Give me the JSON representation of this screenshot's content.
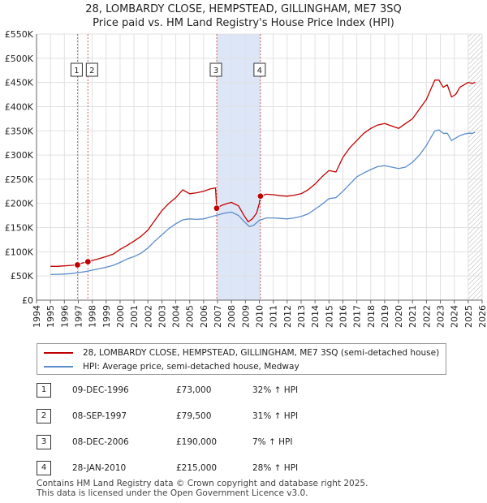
{
  "header": {
    "title_line1": "28, LOMBARDY CLOSE, HEMPSTEAD, GILLINGHAM, ME7 3SQ",
    "title_line2": "Price paid vs. HM Land Registry's House Price Index (HPI)"
  },
  "legend": {
    "property_label": "28, LOMBARDY CLOSE, HEMPSTEAD, GILLINGHAM, ME7 3SQ (semi-detached house)",
    "hpi_label": "HPI: Average price, semi-detached house, Medway"
  },
  "sales": [
    {
      "num": "1",
      "date": "09-DEC-1996",
      "price": "£73,000",
      "hpi": "32% ↑ HPI"
    },
    {
      "num": "2",
      "date": "08-SEP-1997",
      "price": "£79,500",
      "hpi": "31% ↑ HPI"
    },
    {
      "num": "3",
      "date": "08-DEC-2006",
      "price": "£190,000",
      "hpi": "7% ↑ HPI"
    },
    {
      "num": "4",
      "date": "28-JAN-2010",
      "price": "£215,000",
      "hpi": "28% ↑ HPI"
    }
  ],
  "footer": {
    "line1": "Contains HM Land Registry data © Crown copyright and database right 2025.",
    "line2": "This data is licensed under the Open Government Licence v3.0."
  },
  "colors": {
    "property": "#c00000",
    "hpi": "#5b8ccc",
    "shade": "#dde6f7",
    "grid": "#e0e0e0",
    "marker_line": "#d06060"
  },
  "chart_data": {
    "type": "line",
    "title": "28, LOMBARDY CLOSE, HEMPSTEAD, GILLINGHAM, ME7 3SQ — Price paid vs. HM Land Registry's House Price Index (HPI)",
    "xlabel": "",
    "ylabel": "",
    "xlim": [
      1994,
      2026
    ],
    "ylim": [
      0,
      550000
    ],
    "x_ticks": [
      1994,
      1995,
      1996,
      1997,
      1998,
      1999,
      2000,
      2001,
      2002,
      2003,
      2004,
      2005,
      2006,
      2007,
      2008,
      2009,
      2010,
      2011,
      2012,
      2013,
      2014,
      2015,
      2016,
      2017,
      2018,
      2019,
      2020,
      2021,
      2022,
      2023,
      2024,
      2025,
      2026
    ],
    "y_ticks": [
      0,
      50000,
      100000,
      150000,
      200000,
      250000,
      300000,
      350000,
      400000,
      450000,
      500000,
      550000
    ],
    "y_tick_labels": [
      "£0",
      "£50K",
      "£100K",
      "£150K",
      "£200K",
      "£250K",
      "£300K",
      "£350K",
      "£400K",
      "£450K",
      "£500K",
      "£550K"
    ],
    "shaded_range": [
      2006.94,
      2010.08
    ],
    "hatched_from": 2025.0,
    "markers": [
      {
        "label": "1",
        "x": 1996.94,
        "y": 73000
      },
      {
        "label": "2",
        "x": 1997.69,
        "y": 79500
      },
      {
        "label": "3",
        "x": 2006.94,
        "y": 190000
      },
      {
        "label": "4",
        "x": 2010.08,
        "y": 215000
      }
    ],
    "series": [
      {
        "name": "28, LOMBARDY CLOSE, HEMPSTEAD, GILLINGHAM, ME7 3SQ (semi-detached house)",
        "x": [
          1995.0,
          1995.5,
          1996.0,
          1996.5,
          1996.94,
          1997.3,
          1997.69,
          1998.0,
          1998.5,
          1999.0,
          1999.5,
          2000.0,
          2000.5,
          2001.0,
          2001.5,
          2002.0,
          2002.5,
          2003.0,
          2003.5,
          2004.0,
          2004.5,
          2005.0,
          2005.5,
          2006.0,
          2006.5,
          2006.85,
          2006.94,
          2007.3,
          2007.7,
          2008.0,
          2008.5,
          2008.9,
          2009.2,
          2009.5,
          2009.8,
          2010.0,
          2010.08,
          2010.5,
          2011.0,
          2011.5,
          2012.0,
          2012.5,
          2013.0,
          2013.5,
          2014.0,
          2014.5,
          2015.0,
          2015.5,
          2016.0,
          2016.5,
          2017.0,
          2017.5,
          2018.0,
          2018.5,
          2019.0,
          2019.5,
          2020.0,
          2020.5,
          2021.0,
          2021.5,
          2022.0,
          2022.3,
          2022.6,
          2022.9,
          2023.2,
          2023.5,
          2023.8,
          2024.1,
          2024.4,
          2024.7,
          2025.0,
          2025.3,
          2025.5
        ],
        "values": [
          70000,
          70000,
          71000,
          72000,
          73000,
          77000,
          79500,
          82000,
          86000,
          90000,
          95000,
          105000,
          113000,
          122000,
          132000,
          145000,
          165000,
          185000,
          200000,
          212000,
          228000,
          220000,
          222000,
          225000,
          230000,
          232000,
          190000,
          196000,
          200000,
          202000,
          195000,
          175000,
          162000,
          168000,
          180000,
          200000,
          215000,
          219000,
          218000,
          216000,
          215000,
          217000,
          220000,
          228000,
          240000,
          255000,
          268000,
          265000,
          295000,
          315000,
          330000,
          345000,
          355000,
          362000,
          365000,
          360000,
          355000,
          365000,
          375000,
          395000,
          415000,
          435000,
          455000,
          455000,
          440000,
          445000,
          420000,
          425000,
          440000,
          445000,
          450000,
          448000,
          450000
        ]
      },
      {
        "name": "HPI: Average price, semi-detached house, Medway",
        "x": [
          1995.0,
          1995.5,
          1996.0,
          1996.5,
          1997.0,
          1997.5,
          1998.0,
          1998.5,
          1999.0,
          1999.5,
          2000.0,
          2000.5,
          2001.0,
          2001.5,
          2002.0,
          2002.5,
          2003.0,
          2003.5,
          2004.0,
          2004.5,
          2005.0,
          2005.5,
          2006.0,
          2006.5,
          2007.0,
          2007.5,
          2008.0,
          2008.5,
          2009.0,
          2009.3,
          2009.6,
          2010.0,
          2010.5,
          2011.0,
          2011.5,
          2012.0,
          2012.5,
          2013.0,
          2013.5,
          2014.0,
          2014.5,
          2015.0,
          2015.5,
          2016.0,
          2016.5,
          2017.0,
          2017.5,
          2018.0,
          2018.5,
          2019.0,
          2019.5,
          2020.0,
          2020.5,
          2021.0,
          2021.5,
          2022.0,
          2022.3,
          2022.6,
          2022.9,
          2023.2,
          2023.5,
          2023.8,
          2024.1,
          2024.4,
          2024.7,
          2025.0,
          2025.3,
          2025.5
        ],
        "values": [
          53000,
          53500,
          54000,
          55000,
          57000,
          59000,
          62000,
          65000,
          68000,
          72000,
          78000,
          85000,
          90000,
          97000,
          108000,
          122000,
          135000,
          148000,
          158000,
          166000,
          168000,
          167000,
          168000,
          172000,
          176000,
          180000,
          182000,
          175000,
          160000,
          152000,
          155000,
          165000,
          170000,
          170000,
          169000,
          168000,
          170000,
          173000,
          178000,
          188000,
          198000,
          210000,
          212000,
          225000,
          240000,
          255000,
          263000,
          270000,
          276000,
          278000,
          275000,
          272000,
          275000,
          285000,
          300000,
          320000,
          335000,
          350000,
          352000,
          345000,
          345000,
          330000,
          335000,
          340000,
          343000,
          345000,
          345000,
          347000
        ]
      }
    ]
  }
}
